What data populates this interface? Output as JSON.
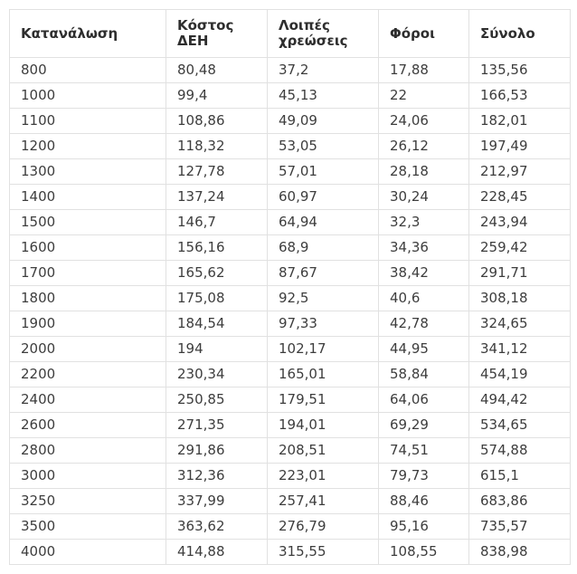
{
  "chart_data": {
    "type": "table",
    "title": "",
    "columns": [
      "Κατανάλωση",
      "Κόστος ΔΕΗ",
      "Λοιπές χρεώσεις",
      "Φόροι",
      "Σύνολο"
    ],
    "rows": [
      [
        "800",
        "80,48",
        "37,2",
        "17,88",
        "135,56"
      ],
      [
        "1000",
        "99,4",
        "45,13",
        "22",
        "166,53"
      ],
      [
        "1100",
        "108,86",
        "49,09",
        "24,06",
        "182,01"
      ],
      [
        "1200",
        "118,32",
        "53,05",
        "26,12",
        "197,49"
      ],
      [
        "1300",
        "127,78",
        "57,01",
        "28,18",
        "212,97"
      ],
      [
        "1400",
        "137,24",
        "60,97",
        "30,24",
        "228,45"
      ],
      [
        "1500",
        "146,7",
        "64,94",
        "32,3",
        "243,94"
      ],
      [
        "1600",
        "156,16",
        "68,9",
        "34,36",
        "259,42"
      ],
      [
        "1700",
        "165,62",
        "87,67",
        "38,42",
        "291,71"
      ],
      [
        "1800",
        "175,08",
        "92,5",
        "40,6",
        "308,18"
      ],
      [
        "1900",
        "184,54",
        "97,33",
        "42,78",
        "324,65"
      ],
      [
        "2000",
        "194",
        "102,17",
        "44,95",
        "341,12"
      ],
      [
        "2200",
        "230,34",
        "165,01",
        "58,84",
        "454,19"
      ],
      [
        "2400",
        "250,85",
        "179,51",
        "64,06",
        "494,42"
      ],
      [
        "2600",
        "271,35",
        "194,01",
        "69,29",
        "534,65"
      ],
      [
        "2800",
        "291,86",
        "208,51",
        "74,51",
        "574,88"
      ],
      [
        "3000",
        "312,36",
        "223,01",
        "79,73",
        "615,1"
      ],
      [
        "3250",
        "337,99",
        "257,41",
        "88,46",
        "683,86"
      ],
      [
        "3500",
        "363,62",
        "276,79",
        "95,16",
        "735,57"
      ],
      [
        "4000",
        "414,88",
        "315,55",
        "108,55",
        "838,98"
      ]
    ],
    "layout": {
      "grid": true,
      "header_bold": true
    }
  },
  "colors": {
    "background": "#ffffff",
    "border": "#e1e1e1",
    "header_text": "#2e2e2e",
    "cell_text": "#3d3d3d"
  }
}
